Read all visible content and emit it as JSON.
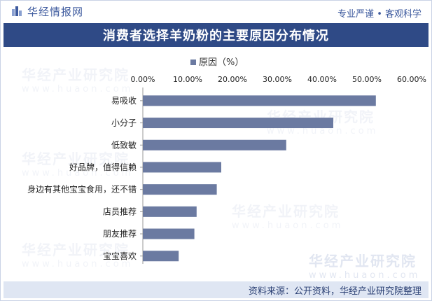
{
  "header": {
    "brand": "华经情报网",
    "slogan": "专业严谨 • 客观科学"
  },
  "title": "消费者选择羊奶粉的主要原因分布情况",
  "watermark": {
    "cn": "华经产业研究院",
    "url": "www.huaon.com"
  },
  "chart_data": {
    "type": "bar",
    "orientation": "horizontal",
    "categories": [
      "易吸收",
      "小分子",
      "低致敏",
      "好品牌，值得信赖",
      "身边有其他宝宝食用，还不错",
      "店员推荐",
      "朋友推荐",
      "宝宝喜欢"
    ],
    "series": [
      {
        "name": "原因（%）",
        "values": [
          52.0,
          42.5,
          32.0,
          17.5,
          16.5,
          12.0,
          11.5,
          8.0
        ]
      }
    ],
    "xlim": [
      0,
      60
    ],
    "ticks": [
      "0.00%",
      "10.00%",
      "20.00%",
      "30.00%",
      "40.00%",
      "50.00%",
      "60.00%"
    ],
    "xaxis_position": "top",
    "legend_position": "top",
    "grid": false
  },
  "colors": {
    "bar": "#6b7aa1",
    "title_bg": "#2f4a86",
    "footer_bg": "#dfe6f3"
  },
  "footer": {
    "source": "资料来源：公开资料，华经产业研究院整理"
  }
}
